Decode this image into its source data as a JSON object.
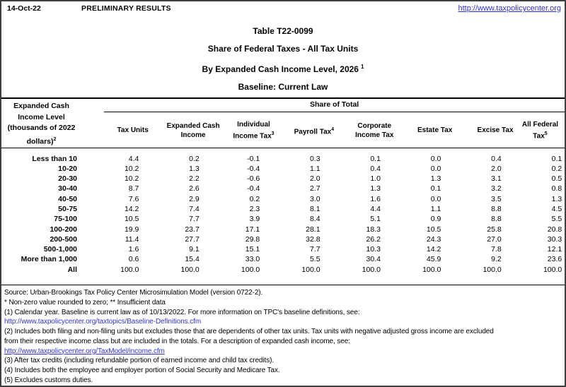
{
  "header": {
    "date": "14-Oct-22",
    "status": "PRELIMINARY RESULTS",
    "site_link": "http://www.taxpolicycenter.org"
  },
  "title": {
    "line1": "Table T22-0099",
    "line2": "Share of Federal Taxes - All Tax Units",
    "line3": "By Expanded Cash Income Level, 2026",
    "line3_sup": "1",
    "line4": "Baseline: Current Law"
  },
  "table": {
    "row_header_lines": [
      "Expanded Cash",
      "Income Level",
      "(thousands of 2022",
      "dollars)"
    ],
    "row_header_sup": "2",
    "span_header": "Share of Total",
    "columns": [
      {
        "id": "tax-units",
        "label": "Tax Units",
        "sup": ""
      },
      {
        "id": "expanded-cash-income",
        "label": "Expanded Cash Income",
        "sup": ""
      },
      {
        "id": "individual-income-tax",
        "label": "Individual Income Tax",
        "sup": "3"
      },
      {
        "id": "payroll-tax",
        "label": "Payroll Tax",
        "sup": "4"
      },
      {
        "id": "corporate-income-tax",
        "label": "Corporate Income Tax",
        "sup": ""
      },
      {
        "id": "estate-tax",
        "label": "Estate Tax",
        "sup": ""
      },
      {
        "id": "excise-tax",
        "label": "Excise Tax",
        "sup": ""
      },
      {
        "id": "all-federal-tax",
        "label": "All Federal Tax",
        "sup": "5"
      }
    ],
    "rows": [
      {
        "label": "Less than 10",
        "values": [
          "4.4",
          "0.2",
          "-0.1",
          "0.3",
          "0.1",
          "0.0",
          "0.4",
          "0.1"
        ]
      },
      {
        "label": "10-20",
        "values": [
          "10.2",
          "1.3",
          "-0.4",
          "1.1",
          "0.4",
          "0.0",
          "2.0",
          "0.2"
        ]
      },
      {
        "label": "20-30",
        "values": [
          "10.2",
          "2.2",
          "-0.6",
          "2.0",
          "1.0",
          "1.3",
          "3.1",
          "0.5"
        ]
      },
      {
        "label": "30-40",
        "values": [
          "8.7",
          "2.6",
          "-0.4",
          "2.7",
          "1.3",
          "0.1",
          "3.2",
          "0.8"
        ]
      },
      {
        "label": "40-50",
        "values": [
          "7.6",
          "2.9",
          "0.2",
          "3.0",
          "1.6",
          "0.0",
          "3.5",
          "1.3"
        ]
      },
      {
        "label": "50-75",
        "values": [
          "14.2",
          "7.4",
          "2.3",
          "8.1",
          "4.4",
          "1.1",
          "8.8",
          "4.5"
        ]
      },
      {
        "label": "75-100",
        "values": [
          "10.5",
          "7.7",
          "3.9",
          "8.4",
          "5.1",
          "0.9",
          "8.8",
          "5.5"
        ]
      },
      {
        "label": "100-200",
        "values": [
          "19.9",
          "23.7",
          "17.1",
          "28.1",
          "18.3",
          "10.5",
          "25.8",
          "20.8"
        ]
      },
      {
        "label": "200-500",
        "values": [
          "11.4",
          "27.7",
          "29.8",
          "32.8",
          "26.2",
          "24.3",
          "27.0",
          "30.3"
        ]
      },
      {
        "label": "500-1,000",
        "values": [
          "1.6",
          "9.1",
          "15.1",
          "7.7",
          "10.3",
          "14.2",
          "7.8",
          "12.1"
        ]
      },
      {
        "label": "More than 1,000",
        "values": [
          "0.6",
          "15.4",
          "33.0",
          "5.5",
          "30.4",
          "45.9",
          "9.2",
          "23.6"
        ]
      },
      {
        "label": "All",
        "values": [
          "100.0",
          "100.0",
          "100.0",
          "100.0",
          "100.0",
          "100.0",
          "100.0",
          "100.0"
        ]
      }
    ]
  },
  "footnotes": {
    "source": "Source: Urban-Brookings Tax Policy Center Microsimulation Model (version 0722-2).",
    "stars": "* Non-zero value rounded to zero; ** Insufficient data",
    "note1": "(1) Calendar year. Baseline is current law as of 10/13/2022. For more information on TPC's baseline definitions, see:",
    "link1": "http://www.taxpolicycenter.org/taxtopics/Baseline-Definitions.cfm",
    "note2a": "(2) Includes both filing and non-filing units but excludes those that are dependents of other tax units. Tax units with negative adjusted gross income are excluded",
    "note2b": "from their respective income class but are included in the totals. For a description of expanded cash income, see:",
    "link2": "http://www.taxpolicycenter.org/TaxModel/income.cfm",
    "note3": "(3) After tax credits (including refundable portion of earned income and child tax credits).",
    "note4": "(4) Includes both the employee and employer portion of Social Security and Medicare Tax.",
    "note5": "(5) Excludes customs duties."
  },
  "colors": {
    "link": "#3333cc",
    "text": "#000000",
    "border": "#404040"
  }
}
